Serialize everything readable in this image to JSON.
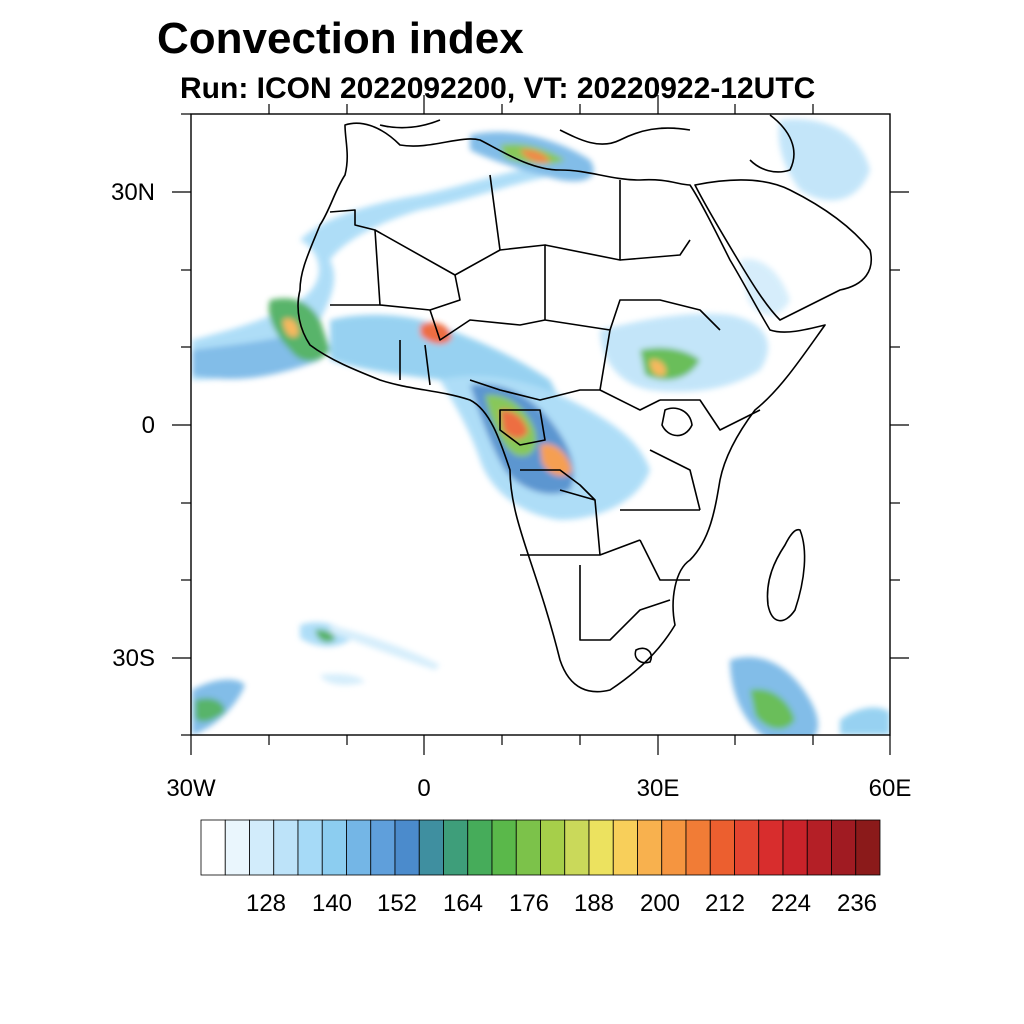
{
  "title": "Convection index",
  "subtitle": "Run: ICON 2022092200,  VT: 20220922-12UTC",
  "map": {
    "lon_range": [
      -30,
      60
    ],
    "lat_range": [
      -40,
      40
    ],
    "lat_labels": [
      "30N",
      "0",
      "30S"
    ],
    "lon_labels": [
      "30W",
      "0",
      "30E",
      "60E"
    ]
  },
  "colorbar": {
    "colors": [
      "#ffffff",
      "#eaf6fd",
      "#d2ecfb",
      "#bde3f9",
      "#a6daf7",
      "#8ccdf0",
      "#74b6e6",
      "#5f9fdb",
      "#4b8bcc",
      "#3f8fa0",
      "#3e9e7a",
      "#46ac5a",
      "#5ab84a",
      "#7cc24a",
      "#a6cf4a",
      "#cad95a",
      "#ece25f",
      "#f8cf5a",
      "#f8b14e",
      "#f59540",
      "#f17c36",
      "#ec5f2f",
      "#e34430",
      "#d82d2d",
      "#c9232a",
      "#b41f26",
      "#a01b22",
      "#8b1a1a"
    ],
    "labels": [
      "128",
      "140",
      "152",
      "164",
      "176",
      "188",
      "200",
      "212",
      "224",
      "236"
    ]
  }
}
